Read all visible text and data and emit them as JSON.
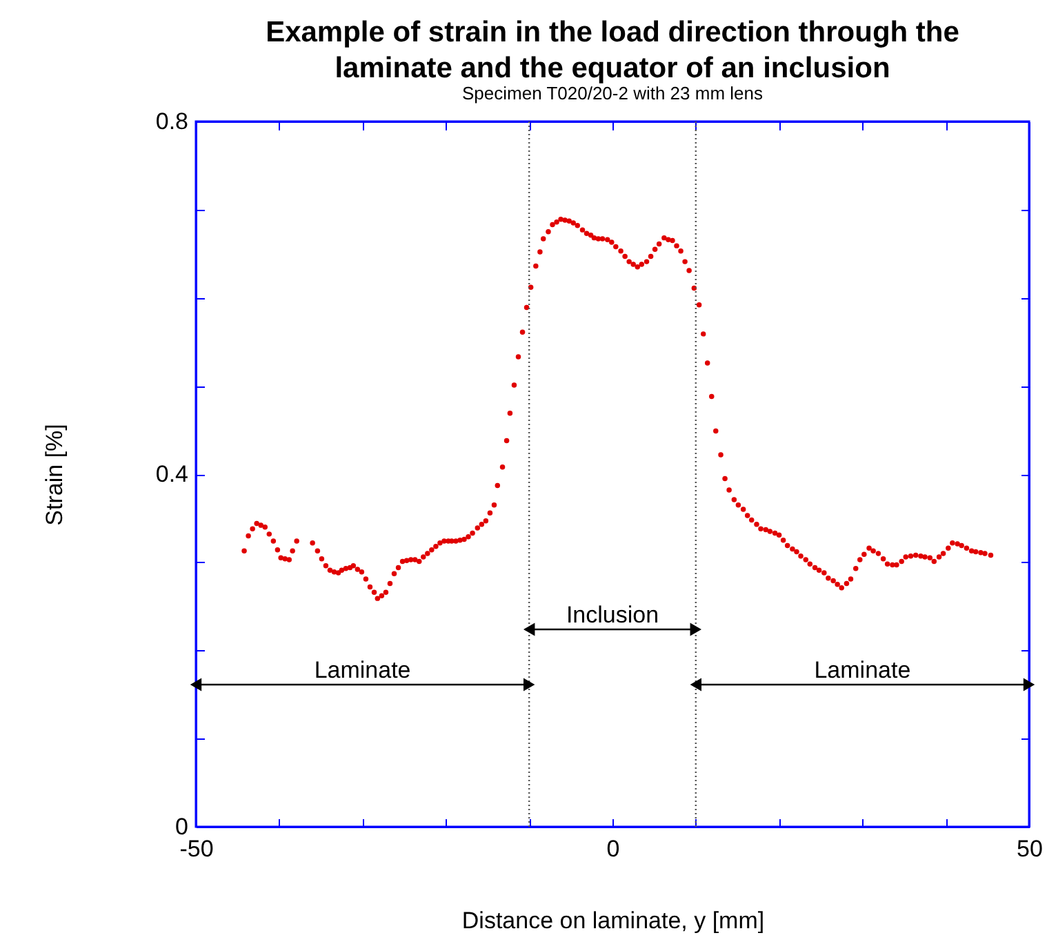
{
  "chart_data": {
    "type": "scatter",
    "title": [
      "Example of strain in the load direction through the",
      "laminate and the equator of an inclusion"
    ],
    "subtitle": "Specimen T020/20-2 with 23 mm lens",
    "xlabel": "Distance on laminate, y [mm]",
    "ylabel": "Strain [%]",
    "x": [
      -44.2,
      -43.7,
      -43.2,
      -42.7,
      -42.2,
      -41.7,
      -41.2,
      -40.7,
      -40.2,
      -39.8,
      -39.3,
      -38.8,
      -38.4,
      -37.9,
      -36.0,
      -35.4,
      -34.9,
      -34.4,
      -33.9,
      -33.4,
      -32.9,
      -32.5,
      -32.0,
      -31.5,
      -31.1,
      -30.6,
      -30.1,
      -29.6,
      -29.1,
      -28.6,
      -28.2,
      -27.7,
      -27.2,
      -26.7,
      -26.2,
      -25.7,
      -25.2,
      -24.7,
      -24.2,
      -23.7,
      -23.2,
      -22.7,
      -22.2,
      -21.7,
      -21.2,
      -20.7,
      -20.2,
      -19.7,
      -19.3,
      -18.8,
      -18.3,
      -17.8,
      -17.3,
      -16.8,
      -16.2,
      -15.7,
      -15.2,
      -14.7,
      -14.2,
      -13.8,
      -13.2,
      -12.7,
      -12.3,
      -11.8,
      -11.3,
      -10.8,
      -10.3,
      -9.8,
      -9.2,
      -8.7,
      -8.3,
      -7.7,
      -7.2,
      -6.7,
      -6.2,
      -5.7,
      -5.2,
      -4.7,
      -4.2,
      -3.6,
      -3.1,
      -2.6,
      -2.2,
      -1.7,
      -1.2,
      -0.6,
      -0.1,
      0.4,
      1.0,
      1.5,
      2.0,
      2.5,
      3.0,
      3.5,
      4.1,
      4.6,
      5.1,
      5.6,
      6.2,
      6.7,
      7.2,
      7.7,
      8.2,
      8.7,
      9.2,
      9.8,
      10.4,
      10.9,
      11.4,
      11.9,
      12.4,
      13.0,
      13.5,
      14.0,
      14.6,
      15.1,
      15.7,
      16.2,
      16.7,
      17.3,
      17.8,
      18.4,
      18.9,
      19.5,
      20.0,
      20.5,
      21.0,
      21.6,
      22.1,
      22.6,
      23.2,
      23.7,
      24.3,
      24.8,
      25.4,
      25.9,
      26.5,
      27.0,
      27.5,
      28.1,
      28.6,
      29.2,
      29.7,
      30.2,
      30.8,
      31.3,
      31.9,
      32.5,
      33.0,
      33.6,
      34.1,
      34.7,
      35.2,
      35.8,
      36.4,
      37.0,
      37.5,
      38.1,
      38.6,
      39.2,
      39.7,
      40.3,
      40.8,
      41.4,
      41.9,
      42.5,
      43.1,
      43.6,
      44.2,
      44.7,
      45.4
    ],
    "series": [
      {
        "color": "#e00000",
        "values": [
          0.313,
          0.33,
          0.338,
          0.344,
          0.342,
          0.34,
          0.332,
          0.324,
          0.314,
          0.305,
          0.304,
          0.303,
          0.313,
          0.324,
          0.322,
          0.313,
          0.304,
          0.296,
          0.291,
          0.289,
          0.288,
          0.291,
          0.293,
          0.294,
          0.296,
          0.292,
          0.289,
          0.281,
          0.272,
          0.266,
          0.259,
          0.262,
          0.266,
          0.276,
          0.287,
          0.294,
          0.301,
          0.302,
          0.303,
          0.303,
          0.301,
          0.306,
          0.31,
          0.314,
          0.318,
          0.322,
          0.324,
          0.324,
          0.324,
          0.324,
          0.325,
          0.326,
          0.329,
          0.333,
          0.339,
          0.343,
          0.347,
          0.356,
          0.365,
          0.387,
          0.408,
          0.438,
          0.469,
          0.501,
          0.533,
          0.561,
          0.589,
          0.612,
          0.636,
          0.652,
          0.667,
          0.675,
          0.683,
          0.686,
          0.689,
          0.688,
          0.687,
          0.685,
          0.682,
          0.677,
          0.673,
          0.671,
          0.668,
          0.667,
          0.667,
          0.666,
          0.663,
          0.658,
          0.653,
          0.647,
          0.641,
          0.638,
          0.635,
          0.638,
          0.641,
          0.647,
          0.655,
          0.661,
          0.668,
          0.666,
          0.665,
          0.659,
          0.653,
          0.641,
          0.631,
          0.611,
          0.592,
          0.559,
          0.526,
          0.488,
          0.449,
          0.422,
          0.395,
          0.382,
          0.371,
          0.365,
          0.36,
          0.353,
          0.348,
          0.343,
          0.338,
          0.337,
          0.335,
          0.333,
          0.331,
          0.325,
          0.319,
          0.315,
          0.312,
          0.307,
          0.303,
          0.298,
          0.294,
          0.291,
          0.288,
          0.282,
          0.279,
          0.275,
          0.271,
          0.276,
          0.281,
          0.293,
          0.303,
          0.309,
          0.316,
          0.313,
          0.31,
          0.304,
          0.298,
          0.297,
          0.297,
          0.301,
          0.306,
          0.307,
          0.308,
          0.307,
          0.306,
          0.305,
          0.301,
          0.306,
          0.31,
          0.316,
          0.322,
          0.321,
          0.319,
          0.316,
          0.313,
          0.312,
          0.311,
          0.31,
          0.308
        ]
      }
    ],
    "xlim": [
      -50,
      50
    ],
    "xticks": [
      -50,
      {
        "value": -40,
        "label": null
      },
      {
        "value": -30,
        "label": null
      },
      {
        "value": -20,
        "label": null
      },
      {
        "value": -10,
        "label": null
      },
      0,
      {
        "value": 10,
        "label": null
      },
      {
        "value": 20,
        "label": null
      },
      {
        "value": 30,
        "label": null
      },
      {
        "value": 40,
        "label": null
      },
      50
    ],
    "ylim": [
      0,
      0.8
    ],
    "yticks": [
      0,
      {
        "value": 0.1,
        "label": null
      },
      {
        "value": 0.2,
        "label": null
      },
      {
        "value": 0.3,
        "label": null
      },
      0.4,
      {
        "value": 0.5,
        "label": null
      },
      {
        "value": 0.6,
        "label": null
      },
      {
        "value": 0.7,
        "label": null
      },
      0.8
    ],
    "ref_lines": [
      {
        "axis": "x",
        "value": -10,
        "line_style": "dotted",
        "color": "#555555"
      },
      {
        "axis": "x",
        "value": 10,
        "line_style": "dotted",
        "color": "#555555"
      }
    ],
    "annotations": [
      "Laminate",
      "Inclusion",
      "Laminate"
    ],
    "marker": "circle",
    "grid": false
  }
}
